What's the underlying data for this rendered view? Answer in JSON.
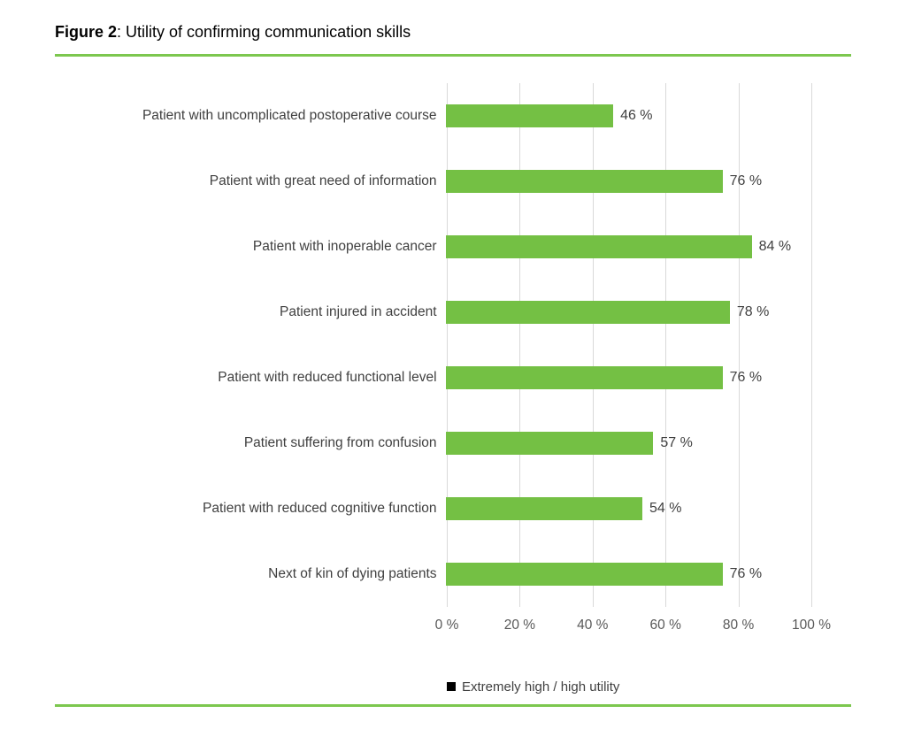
{
  "title": {
    "label": "Figure 2",
    "separator": ": ",
    "text": "Utility of confirming communication skills"
  },
  "colors": {
    "bar": "#74c044",
    "rule": "#7cc74f",
    "gridline": "#d9d9d9",
    "text": "#404040",
    "tick_text": "#595959",
    "legend_marker": "#000000"
  },
  "chart_data": {
    "type": "bar",
    "orientation": "horizontal",
    "title": "Figure 2: Utility of confirming communication skills",
    "categories": [
      "Patient with uncomplicated postoperative course",
      "Patient with great need of information",
      "Patient with inoperable cancer",
      "Patient injured in accident",
      "Patient with reduced functional level",
      "Patient suffering from confusion",
      "Patient with reduced cognitive function",
      "Next of kin of dying patients"
    ],
    "values": [
      46,
      76,
      84,
      78,
      76,
      57,
      54,
      76
    ],
    "data_labels": [
      "46 %",
      "76 %",
      "84 %",
      "78 %",
      "76 %",
      "57 %",
      "54 %",
      "76 %"
    ],
    "x_ticks": [
      "0 %",
      "20 %",
      "40 %",
      "60 %",
      "80 %",
      "100 %"
    ],
    "x_tick_values": [
      0,
      20,
      40,
      60,
      80,
      100
    ],
    "xlim": [
      0,
      100
    ],
    "xlabel": "",
    "ylabel": "",
    "grid": "vertical",
    "legend": "Extremely high / high utility",
    "legend_position": "bottom"
  }
}
